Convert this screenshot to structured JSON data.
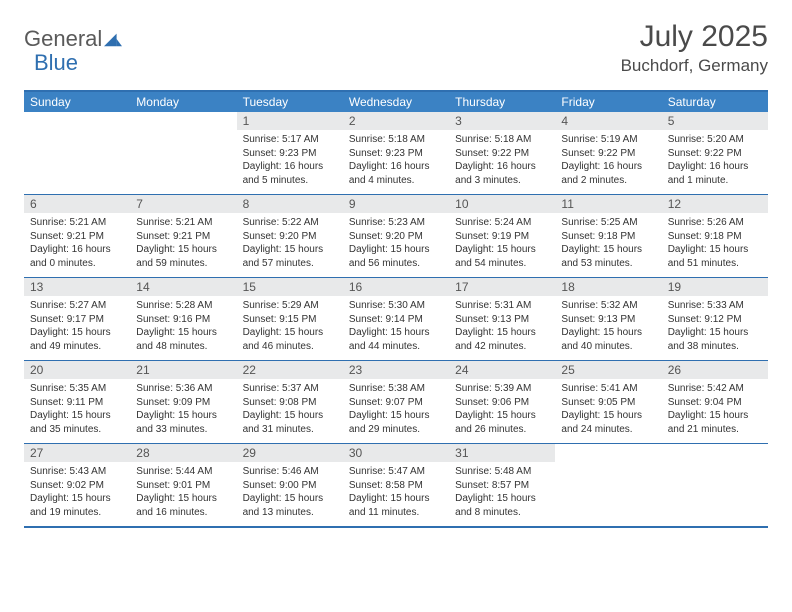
{
  "logo": {
    "part1": "General",
    "part2": "Blue"
  },
  "title": "July 2025",
  "location": "Buchdorf, Germany",
  "colors": {
    "header_bg": "#3b82c4",
    "border": "#2f6fb0",
    "daynum_bg": "#e8e9ea",
    "text": "#333333",
    "logo_gray": "#5a5a5a",
    "logo_blue": "#2f6fb0"
  },
  "day_names": [
    "Sunday",
    "Monday",
    "Tuesday",
    "Wednesday",
    "Thursday",
    "Friday",
    "Saturday"
  ],
  "weeks": [
    [
      {
        "empty": true
      },
      {
        "empty": true
      },
      {
        "n": "1",
        "sr": "Sunrise: 5:17 AM",
        "ss": "Sunset: 9:23 PM",
        "dl": "Daylight: 16 hours and 5 minutes."
      },
      {
        "n": "2",
        "sr": "Sunrise: 5:18 AM",
        "ss": "Sunset: 9:23 PM",
        "dl": "Daylight: 16 hours and 4 minutes."
      },
      {
        "n": "3",
        "sr": "Sunrise: 5:18 AM",
        "ss": "Sunset: 9:22 PM",
        "dl": "Daylight: 16 hours and 3 minutes."
      },
      {
        "n": "4",
        "sr": "Sunrise: 5:19 AM",
        "ss": "Sunset: 9:22 PM",
        "dl": "Daylight: 16 hours and 2 minutes."
      },
      {
        "n": "5",
        "sr": "Sunrise: 5:20 AM",
        "ss": "Sunset: 9:22 PM",
        "dl": "Daylight: 16 hours and 1 minute."
      }
    ],
    [
      {
        "n": "6",
        "sr": "Sunrise: 5:21 AM",
        "ss": "Sunset: 9:21 PM",
        "dl": "Daylight: 16 hours and 0 minutes."
      },
      {
        "n": "7",
        "sr": "Sunrise: 5:21 AM",
        "ss": "Sunset: 9:21 PM",
        "dl": "Daylight: 15 hours and 59 minutes."
      },
      {
        "n": "8",
        "sr": "Sunrise: 5:22 AM",
        "ss": "Sunset: 9:20 PM",
        "dl": "Daylight: 15 hours and 57 minutes."
      },
      {
        "n": "9",
        "sr": "Sunrise: 5:23 AM",
        "ss": "Sunset: 9:20 PM",
        "dl": "Daylight: 15 hours and 56 minutes."
      },
      {
        "n": "10",
        "sr": "Sunrise: 5:24 AM",
        "ss": "Sunset: 9:19 PM",
        "dl": "Daylight: 15 hours and 54 minutes."
      },
      {
        "n": "11",
        "sr": "Sunrise: 5:25 AM",
        "ss": "Sunset: 9:18 PM",
        "dl": "Daylight: 15 hours and 53 minutes."
      },
      {
        "n": "12",
        "sr": "Sunrise: 5:26 AM",
        "ss": "Sunset: 9:18 PM",
        "dl": "Daylight: 15 hours and 51 minutes."
      }
    ],
    [
      {
        "n": "13",
        "sr": "Sunrise: 5:27 AM",
        "ss": "Sunset: 9:17 PM",
        "dl": "Daylight: 15 hours and 49 minutes."
      },
      {
        "n": "14",
        "sr": "Sunrise: 5:28 AM",
        "ss": "Sunset: 9:16 PM",
        "dl": "Daylight: 15 hours and 48 minutes."
      },
      {
        "n": "15",
        "sr": "Sunrise: 5:29 AM",
        "ss": "Sunset: 9:15 PM",
        "dl": "Daylight: 15 hours and 46 minutes."
      },
      {
        "n": "16",
        "sr": "Sunrise: 5:30 AM",
        "ss": "Sunset: 9:14 PM",
        "dl": "Daylight: 15 hours and 44 minutes."
      },
      {
        "n": "17",
        "sr": "Sunrise: 5:31 AM",
        "ss": "Sunset: 9:13 PM",
        "dl": "Daylight: 15 hours and 42 minutes."
      },
      {
        "n": "18",
        "sr": "Sunrise: 5:32 AM",
        "ss": "Sunset: 9:13 PM",
        "dl": "Daylight: 15 hours and 40 minutes."
      },
      {
        "n": "19",
        "sr": "Sunrise: 5:33 AM",
        "ss": "Sunset: 9:12 PM",
        "dl": "Daylight: 15 hours and 38 minutes."
      }
    ],
    [
      {
        "n": "20",
        "sr": "Sunrise: 5:35 AM",
        "ss": "Sunset: 9:11 PM",
        "dl": "Daylight: 15 hours and 35 minutes."
      },
      {
        "n": "21",
        "sr": "Sunrise: 5:36 AM",
        "ss": "Sunset: 9:09 PM",
        "dl": "Daylight: 15 hours and 33 minutes."
      },
      {
        "n": "22",
        "sr": "Sunrise: 5:37 AM",
        "ss": "Sunset: 9:08 PM",
        "dl": "Daylight: 15 hours and 31 minutes."
      },
      {
        "n": "23",
        "sr": "Sunrise: 5:38 AM",
        "ss": "Sunset: 9:07 PM",
        "dl": "Daylight: 15 hours and 29 minutes."
      },
      {
        "n": "24",
        "sr": "Sunrise: 5:39 AM",
        "ss": "Sunset: 9:06 PM",
        "dl": "Daylight: 15 hours and 26 minutes."
      },
      {
        "n": "25",
        "sr": "Sunrise: 5:41 AM",
        "ss": "Sunset: 9:05 PM",
        "dl": "Daylight: 15 hours and 24 minutes."
      },
      {
        "n": "26",
        "sr": "Sunrise: 5:42 AM",
        "ss": "Sunset: 9:04 PM",
        "dl": "Daylight: 15 hours and 21 minutes."
      }
    ],
    [
      {
        "n": "27",
        "sr": "Sunrise: 5:43 AM",
        "ss": "Sunset: 9:02 PM",
        "dl": "Daylight: 15 hours and 19 minutes."
      },
      {
        "n": "28",
        "sr": "Sunrise: 5:44 AM",
        "ss": "Sunset: 9:01 PM",
        "dl": "Daylight: 15 hours and 16 minutes."
      },
      {
        "n": "29",
        "sr": "Sunrise: 5:46 AM",
        "ss": "Sunset: 9:00 PM",
        "dl": "Daylight: 15 hours and 13 minutes."
      },
      {
        "n": "30",
        "sr": "Sunrise: 5:47 AM",
        "ss": "Sunset: 8:58 PM",
        "dl": "Daylight: 15 hours and 11 minutes."
      },
      {
        "n": "31",
        "sr": "Sunrise: 5:48 AM",
        "ss": "Sunset: 8:57 PM",
        "dl": "Daylight: 15 hours and 8 minutes."
      },
      {
        "empty": true
      },
      {
        "empty": true
      }
    ]
  ]
}
